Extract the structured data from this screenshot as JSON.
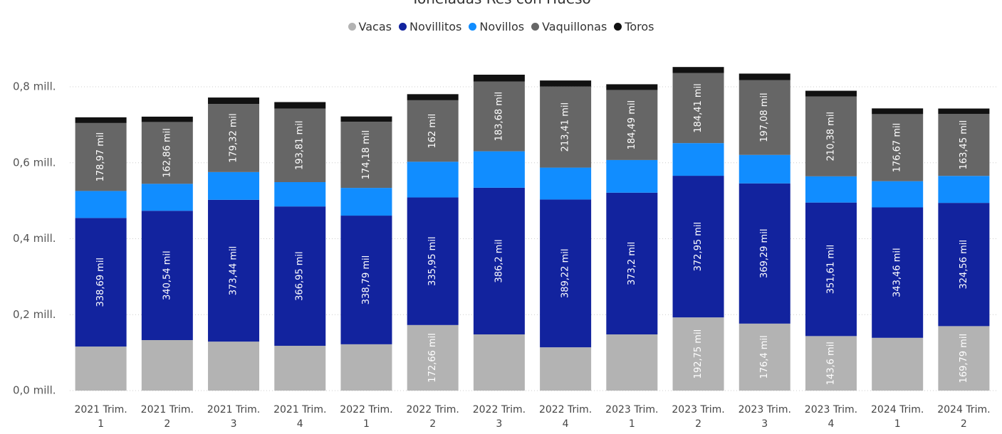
{
  "chart_data": {
    "type": "stacked_bar",
    "title": "Toneladas Res con Hueso",
    "categories": [
      "2021 Trim. 1",
      "2021 Trim. 2",
      "2021 Trim. 3",
      "2021 Trim. 4",
      "2022 Trim. 1",
      "2022 Trim. 2",
      "2022 Trim. 3",
      "2022 Trim. 4",
      "2023 Trim. 1",
      "2023 Trim. 2",
      "2023 Trim. 3",
      "2023 Trim. 4",
      "2024 Trim. 1",
      "2024 Trim. 2"
    ],
    "series": [
      {
        "name": "Vacas",
        "color": "#b3b3b3",
        "values": [
          116000,
          133000,
          129000,
          118000,
          122000,
          172660,
          148000,
          114000,
          148000,
          192750,
          176400,
          143600,
          139000,
          169790
        ],
        "value_labels": [
          null,
          null,
          null,
          null,
          null,
          "172,66 mil",
          null,
          null,
          null,
          "192,75 mil",
          "176,4 mil",
          "143,6 mil",
          null,
          "169,79 mil"
        ]
      },
      {
        "name": "Novillitos",
        "color": "#12239e",
        "values": [
          338690,
          340540,
          373440,
          366950,
          338790,
          335950,
          386200,
          389220,
          373200,
          372950,
          369290,
          351610,
          343460,
          324560
        ],
        "value_labels": [
          "338,69 mil",
          "340,54 mil",
          "373,44 mil",
          "366,95 mil",
          "338,79 mil",
          "335,95 mil",
          "386,2 mil",
          "389,22 mil",
          "373,2 mil",
          "372,95 mil",
          "369,29 mil",
          "351,61 mil",
          "343,46 mil",
          "324,56 mil"
        ]
      },
      {
        "name": "Novillos",
        "color": "#118dff",
        "values": [
          71000,
          71000,
          73000,
          64000,
          73000,
          94000,
          96000,
          84000,
          86000,
          86000,
          75000,
          69000,
          69000,
          71000
        ]
      },
      {
        "name": "Vaquillonas",
        "color": "#666666",
        "values": [
          178970,
          162860,
          179320,
          193810,
          174180,
          162000,
          183680,
          213410,
          184490,
          184410,
          197080,
          210380,
          176670,
          163450
        ],
        "value_labels": [
          "178,97 mil",
          "162,86 mil",
          "179,32 mil",
          "193,81 mil",
          "174,18 mil",
          "162 mil",
          "183,68 mil",
          "213,41 mil",
          "184,49 mil",
          "184,41 mil",
          "197,08 mil",
          "210,38 mil",
          "176,67 mil",
          "163,45 mil"
        ]
      },
      {
        "name": "Toros",
        "color": "#111111",
        "values": [
          15000,
          14000,
          17000,
          17000,
          14000,
          16000,
          18000,
          16000,
          15000,
          16000,
          17000,
          15000,
          15000,
          14000
        ]
      }
    ],
    "ylim": [
      0,
      800000
    ],
    "yticks": [
      {
        "value": 0,
        "label": "0,0 mill."
      },
      {
        "value": 200000,
        "label": "0,2 mill."
      },
      {
        "value": 400000,
        "label": "0,4 mill."
      },
      {
        "value": 600000,
        "label": "0,6 mill."
      },
      {
        "value": 800000,
        "label": "0,8 mill."
      }
    ],
    "grid": true
  }
}
